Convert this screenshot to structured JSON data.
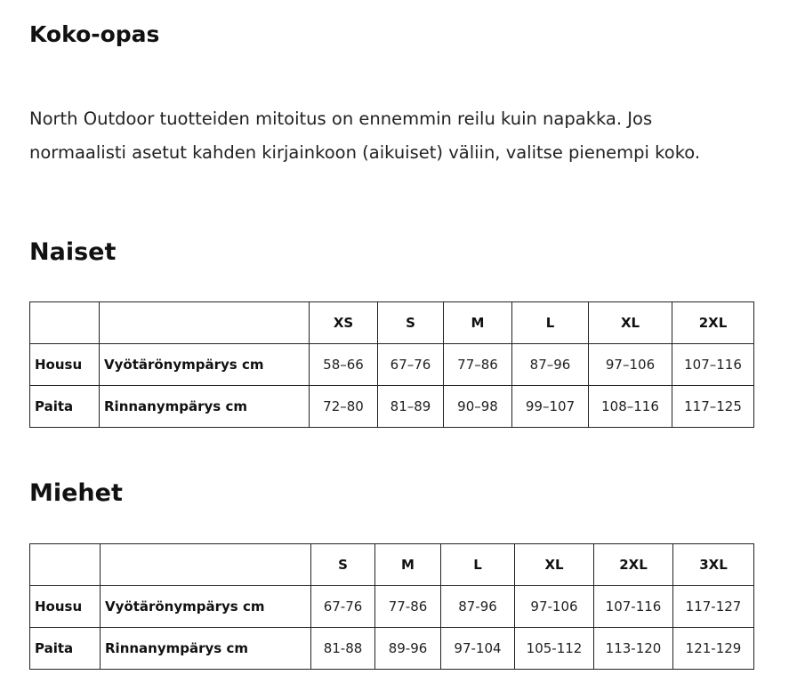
{
  "title": "Koko-opas",
  "intro": "North Outdoor tuotteiden mitoitus on ennemmin reilu kuin napakka. Jos normaalisti asetut kahden kirjainkoon (aikuiset) väliin, valitse pienempi koko.",
  "women": {
    "heading": "Naiset",
    "sizes": [
      "XS",
      "S",
      "M",
      "L",
      "XL",
      "2XL"
    ],
    "rows": [
      {
        "item": "Housu",
        "measure": "Vyötärönympärys cm",
        "values": [
          "58–66",
          "67–76",
          "77–86",
          "87–96",
          "97–106",
          "107–116"
        ]
      },
      {
        "item": "Paita",
        "measure": "Rinnanympärys cm",
        "values": [
          "72–80",
          "81–89",
          "90–98",
          "99–107",
          "108–116",
          "117–125"
        ]
      }
    ]
  },
  "men": {
    "heading": "Miehet",
    "sizes": [
      "S",
      "M",
      "L",
      "XL",
      "2XL",
      "3XL"
    ],
    "rows": [
      {
        "item": "Housu",
        "measure": "Vyötärönympärys cm",
        "values": [
          "67-76",
          "77-86",
          "87-96",
          "97-106",
          "107-116",
          "117-127"
        ]
      },
      {
        "item": "Paita",
        "measure": "Rinnanympärys cm",
        "values": [
          "81-88",
          "89-96",
          "97-104",
          "105-112",
          "113-120",
          "121-129"
        ]
      }
    ]
  }
}
